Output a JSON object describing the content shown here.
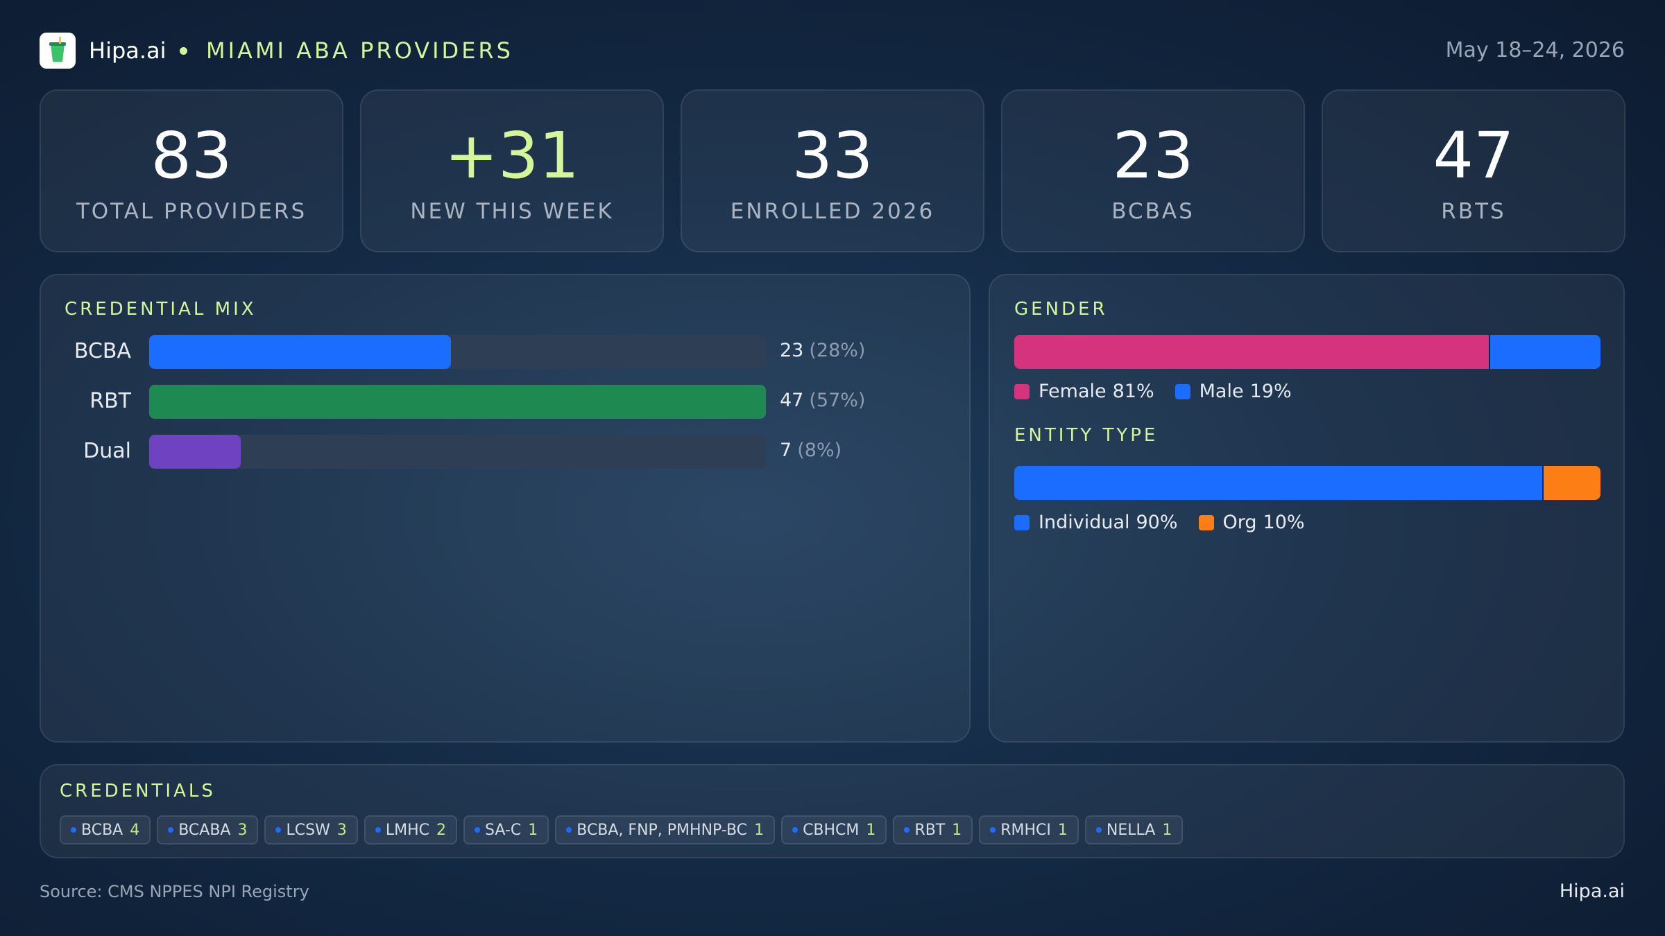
{
  "header": {
    "brand": "Hipa.ai",
    "title": "MIAMI ABA PROVIDERS",
    "date": "May 18–24, 2026"
  },
  "kpis": [
    {
      "value": "83",
      "label": "TOTAL  PROVIDERS"
    },
    {
      "value": "+31",
      "label": "NEW THIS WEEK"
    },
    {
      "value": "33",
      "label": "ENROLLED 2026"
    },
    {
      "value": "23",
      "label": "BCBAS"
    },
    {
      "value": "47",
      "label": "RBTS"
    }
  ],
  "chart_data": [
    {
      "type": "bar",
      "orientation": "horizontal",
      "title": "CREDENTIAL MIX",
      "categories": [
        "BCBA",
        "RBT",
        "Dual"
      ],
      "values": [
        23,
        47,
        7
      ],
      "share_labels": [
        "(28%)",
        "(57%)",
        "(8%)"
      ],
      "colors": [
        "#1a6dff",
        "#1e8a52",
        "#6f42c1"
      ],
      "xlim": [
        0,
        47
      ]
    },
    {
      "type": "stacked-bar",
      "title": "GENDER",
      "xlim": [
        0,
        100
      ],
      "series": [
        {
          "name": "Female",
          "color": "#d6337f",
          "values": [
            81
          ],
          "value_labels": [
            "81%"
          ]
        },
        {
          "name": "Male",
          "color": "#1a6dff",
          "values": [
            19
          ],
          "value_labels": [
            "19%"
          ]
        }
      ]
    },
    {
      "type": "stacked-bar",
      "title": "ENTITY TYPE",
      "xlim": [
        0,
        100
      ],
      "series": [
        {
          "name": "Individual",
          "color": "#1a6dff",
          "values": [
            90
          ],
          "value_labels": [
            "90%"
          ]
        },
        {
          "name": "Org",
          "color": "#fd7e14",
          "values": [
            10
          ],
          "value_labels": [
            "10%"
          ]
        }
      ]
    }
  ],
  "credentials": {
    "title": "CREDENTIALS",
    "items": [
      {
        "name": "BCBA",
        "count": "4"
      },
      {
        "name": "BCABA",
        "count": "3"
      },
      {
        "name": "LCSW",
        "count": "3"
      },
      {
        "name": "LMHC",
        "count": "2"
      },
      {
        "name": "SA-C",
        "count": "1"
      },
      {
        "name": "BCBA, FNP, PMHNP-BC",
        "count": "1"
      },
      {
        "name": "CBHCM",
        "count": "1"
      },
      {
        "name": "RBT",
        "count": "1"
      },
      {
        "name": "RMHCI",
        "count": "1"
      },
      {
        "name": "NELLA",
        "count": "1"
      }
    ]
  },
  "footer": {
    "source": "Source: CMS NPPES NPI Registry",
    "brand": "Hipa.ai"
  }
}
